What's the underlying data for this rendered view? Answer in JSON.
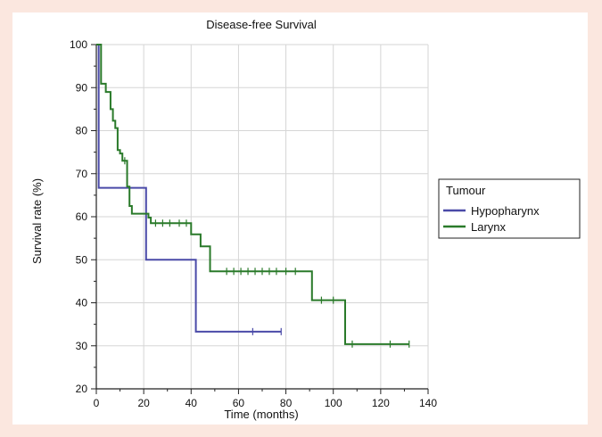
{
  "chart_data": {
    "type": "line",
    "title": "Disease-free Survival",
    "xlabel": "Time (months)",
    "ylabel": "Survival rate (%)",
    "xlim": [
      0,
      140
    ],
    "ylim": [
      20,
      100
    ],
    "x_ticks": [
      0,
      20,
      40,
      60,
      80,
      100,
      120,
      140
    ],
    "y_ticks": [
      20,
      30,
      40,
      50,
      60,
      70,
      80,
      90,
      100
    ],
    "grid": true,
    "legend": {
      "title": "Tumour",
      "placement": "right"
    },
    "series": [
      {
        "name": "Hypopharynx",
        "color": "#4a4aa8",
        "step_points": [
          [
            0,
            100
          ],
          [
            1,
            100
          ],
          [
            1,
            66.7
          ],
          [
            21,
            66.7
          ],
          [
            21,
            50
          ],
          [
            42,
            50
          ],
          [
            42,
            33.3
          ],
          [
            78,
            33.3
          ]
        ],
        "censored_x": [
          66,
          78
        ]
      },
      {
        "name": "Larynx",
        "color": "#2a7a2a",
        "step_points": [
          [
            0,
            100
          ],
          [
            2,
            100
          ],
          [
            2,
            90.9
          ],
          [
            4,
            90.9
          ],
          [
            4,
            89
          ],
          [
            6,
            89
          ],
          [
            6,
            85
          ],
          [
            7,
            85
          ],
          [
            7,
            82.3
          ],
          [
            8,
            82.3
          ],
          [
            8,
            80.6
          ],
          [
            9,
            80.6
          ],
          [
            9,
            75.5
          ],
          [
            10,
            75.5
          ],
          [
            10,
            74.7
          ],
          [
            11,
            74.7
          ],
          [
            11,
            73
          ],
          [
            13,
            73
          ],
          [
            13,
            67
          ],
          [
            14,
            67
          ],
          [
            14,
            62.5
          ],
          [
            15,
            62.5
          ],
          [
            15,
            60.7
          ],
          [
            22,
            60.7
          ],
          [
            22,
            59.8
          ],
          [
            23,
            59.8
          ],
          [
            23,
            58.5
          ],
          [
            40,
            58.5
          ],
          [
            40,
            55.9
          ],
          [
            44,
            55.9
          ],
          [
            44,
            53.1
          ],
          [
            48,
            53.1
          ],
          [
            48,
            47.3
          ],
          [
            91,
            47.3
          ],
          [
            91,
            40.6
          ],
          [
            105,
            40.6
          ],
          [
            105,
            30.4
          ],
          [
            132,
            30.4
          ]
        ],
        "censored_x": [
          12,
          25,
          28,
          31,
          35,
          38,
          55,
          58,
          61,
          64,
          67,
          70,
          73,
          76,
          80,
          84,
          95,
          100,
          108,
          124,
          132
        ]
      }
    ]
  }
}
